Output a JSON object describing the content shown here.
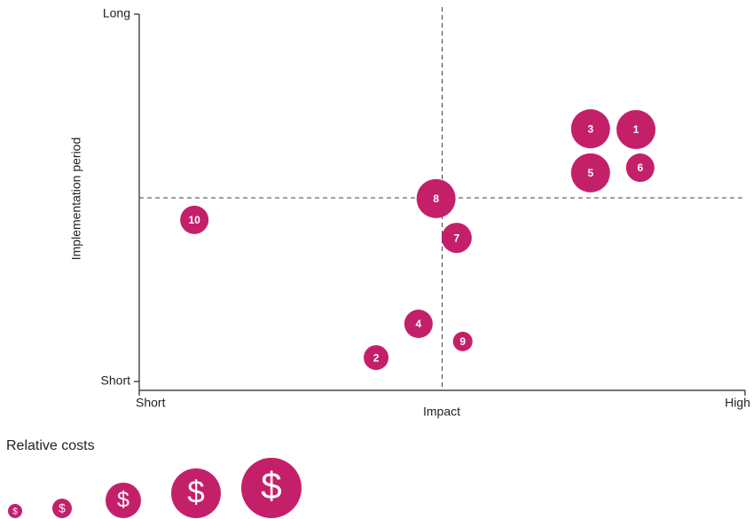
{
  "chart_data": {
    "type": "bubble",
    "x_label": "Impact",
    "y_label": "Implementation period",
    "xlim": [
      0,
      10
    ],
    "ylim": [
      0,
      10
    ],
    "xticks": [
      {
        "value": 0,
        "label": "Short"
      },
      {
        "value": 10,
        "label": "High"
      }
    ],
    "yticks": [
      {
        "value": 0,
        "label": "Short"
      },
      {
        "value": 10,
        "label": "Long"
      }
    ],
    "dividers": {
      "x": 5,
      "y": 5
    },
    "color": "#c4206a",
    "labels": [
      "1",
      "2",
      "3",
      "4",
      "5",
      "6",
      "7",
      "8",
      "9",
      "10"
    ],
    "x": [
      8.2,
      3.91,
      7.45,
      4.61,
      7.45,
      8.27,
      5.24,
      4.9,
      5.34,
      0.91
    ],
    "y": [
      6.86,
      0.65,
      6.88,
      1.57,
      5.68,
      5.82,
      3.91,
      4.98,
      1.09,
      4.4
    ],
    "sizes": [
      22,
      14,
      22,
      16,
      22,
      16,
      17,
      22,
      11,
      16
    ],
    "legend": {
      "title": "Relative costs",
      "symbol": "$",
      "sizes": [
        8,
        11,
        20,
        28,
        34
      ]
    }
  }
}
